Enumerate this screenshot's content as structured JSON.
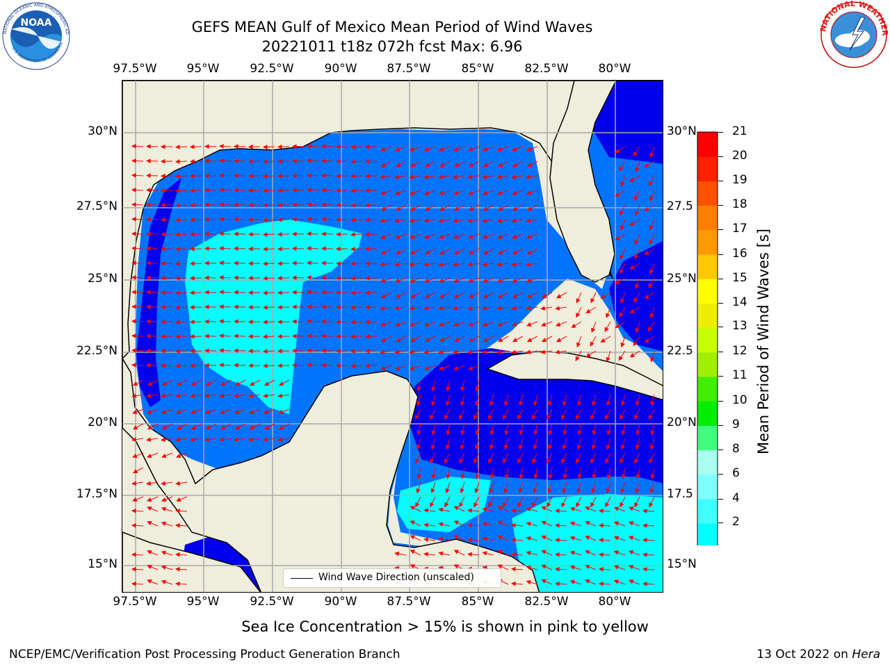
{
  "title": {
    "line1": "GEFS MEAN Gulf of Mexico Mean Period of Wind Waves",
    "line2": "20221011 t18z 072h fcst   Max: 6.96"
  },
  "map": {
    "lon_ticks": [
      "97.5°W",
      "95°W",
      "92.5°W",
      "90°W",
      "87.5°W",
      "85°W",
      "82.5°W",
      "80°W"
    ],
    "lat_ticks": [
      "30°N",
      "27.5°N",
      "25°N",
      "22.5°N",
      "20°N",
      "17.5°N",
      "15°N"
    ],
    "lat_ticks_right": [
      "30°N",
      "27.5",
      "25°N",
      "22.5",
      "20°N",
      "17.5",
      "15°N"
    ],
    "lon_range": [
      -98,
      -78.2
    ],
    "lat_range": [
      14,
      31.6
    ],
    "legend_label": "Wind Wave Direction (unscaled)",
    "land_color": "#efeddb",
    "arrow_color": "#ff0000"
  },
  "colorbar": {
    "label": "Mean Period of Wind Waves [s]",
    "ticks": [
      "21",
      "20",
      "19",
      "18",
      "17",
      "16",
      "15",
      "14",
      "13",
      "12",
      "11",
      "10",
      "9",
      "8",
      "6",
      "4",
      "2"
    ],
    "colors": [
      "#0000ee",
      "#0074ff",
      "#00ffff",
      "#40ffff",
      "#80ffff",
      "#a8fff0",
      "#40ff80",
      "#00ee00",
      "#40ee00",
      "#a0ee00",
      "#c8ff00",
      "#eeee00",
      "#ffff00",
      "#ffc800",
      "#ff9900",
      "#ff8000",
      "#ff5000",
      "#ff2000",
      "#ff0000"
    ]
  },
  "subtitle": "Sea Ice Concentration > 15% is shown in pink to yellow",
  "footer": {
    "left": "NCEP/EMC/Verification Post Processing Product Generation Branch",
    "right_prefix": "13 Oct 2022 on ",
    "right_machine": "Hera"
  },
  "logos": {
    "noaa_text": "NOAA",
    "noaa_ring_top": "NATIONAL OCEANIC AND ATMOSPHERIC ADMINISTRATION",
    "noaa_ring_bottom": "U.S. DEPARTMENT OF COMMERCE",
    "nws_ring": "NATIONAL WEATHER SERVICE"
  }
}
